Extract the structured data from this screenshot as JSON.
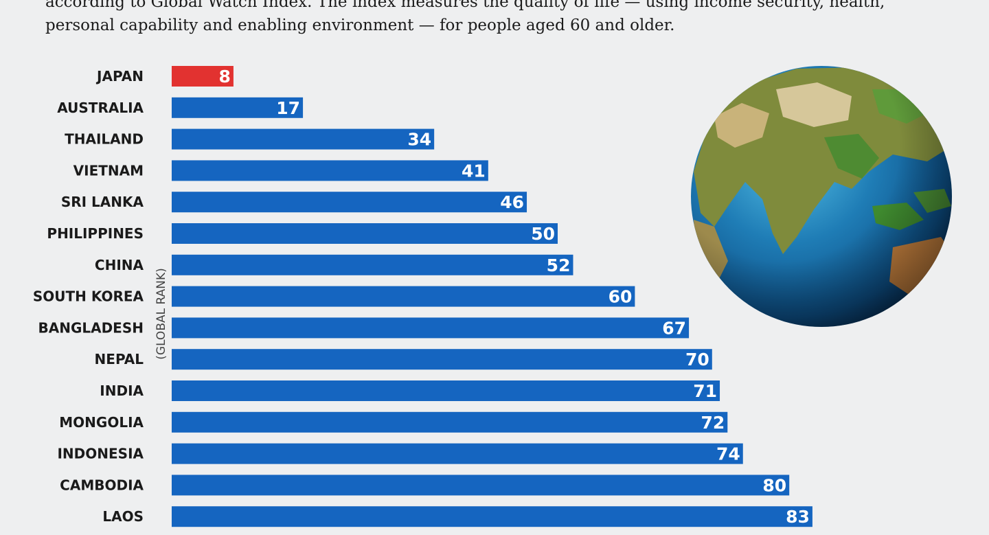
{
  "intro_text": "according to Global Watch Index. The index measures the quality of life — using income security, health, personal capability and enabling environment — for people aged 60 and older.",
  "chart_data": {
    "type": "bar",
    "orientation": "horizontal",
    "ylabel": "(GLOBAL RANK)",
    "categories": [
      "JAPAN",
      "AUSTRALIA",
      "THAILAND",
      "VIETNAM",
      "SRI LANKA",
      "PHILIPPINES",
      "CHINA",
      "SOUTH KOREA",
      "BANGLADESH",
      "NEPAL",
      "INDIA",
      "MONGOLIA",
      "INDONESIA",
      "CAMBODIA",
      "LAOS"
    ],
    "values": [
      8,
      17,
      34,
      41,
      46,
      50,
      52,
      60,
      67,
      70,
      71,
      72,
      74,
      80,
      83
    ],
    "highlight": "JAPAN",
    "colors": {
      "bar": "#1565c0",
      "highlight": "#e23230",
      "label_text": "#ffffff"
    }
  },
  "decoration": {
    "image": "globe-illustration-asia"
  }
}
